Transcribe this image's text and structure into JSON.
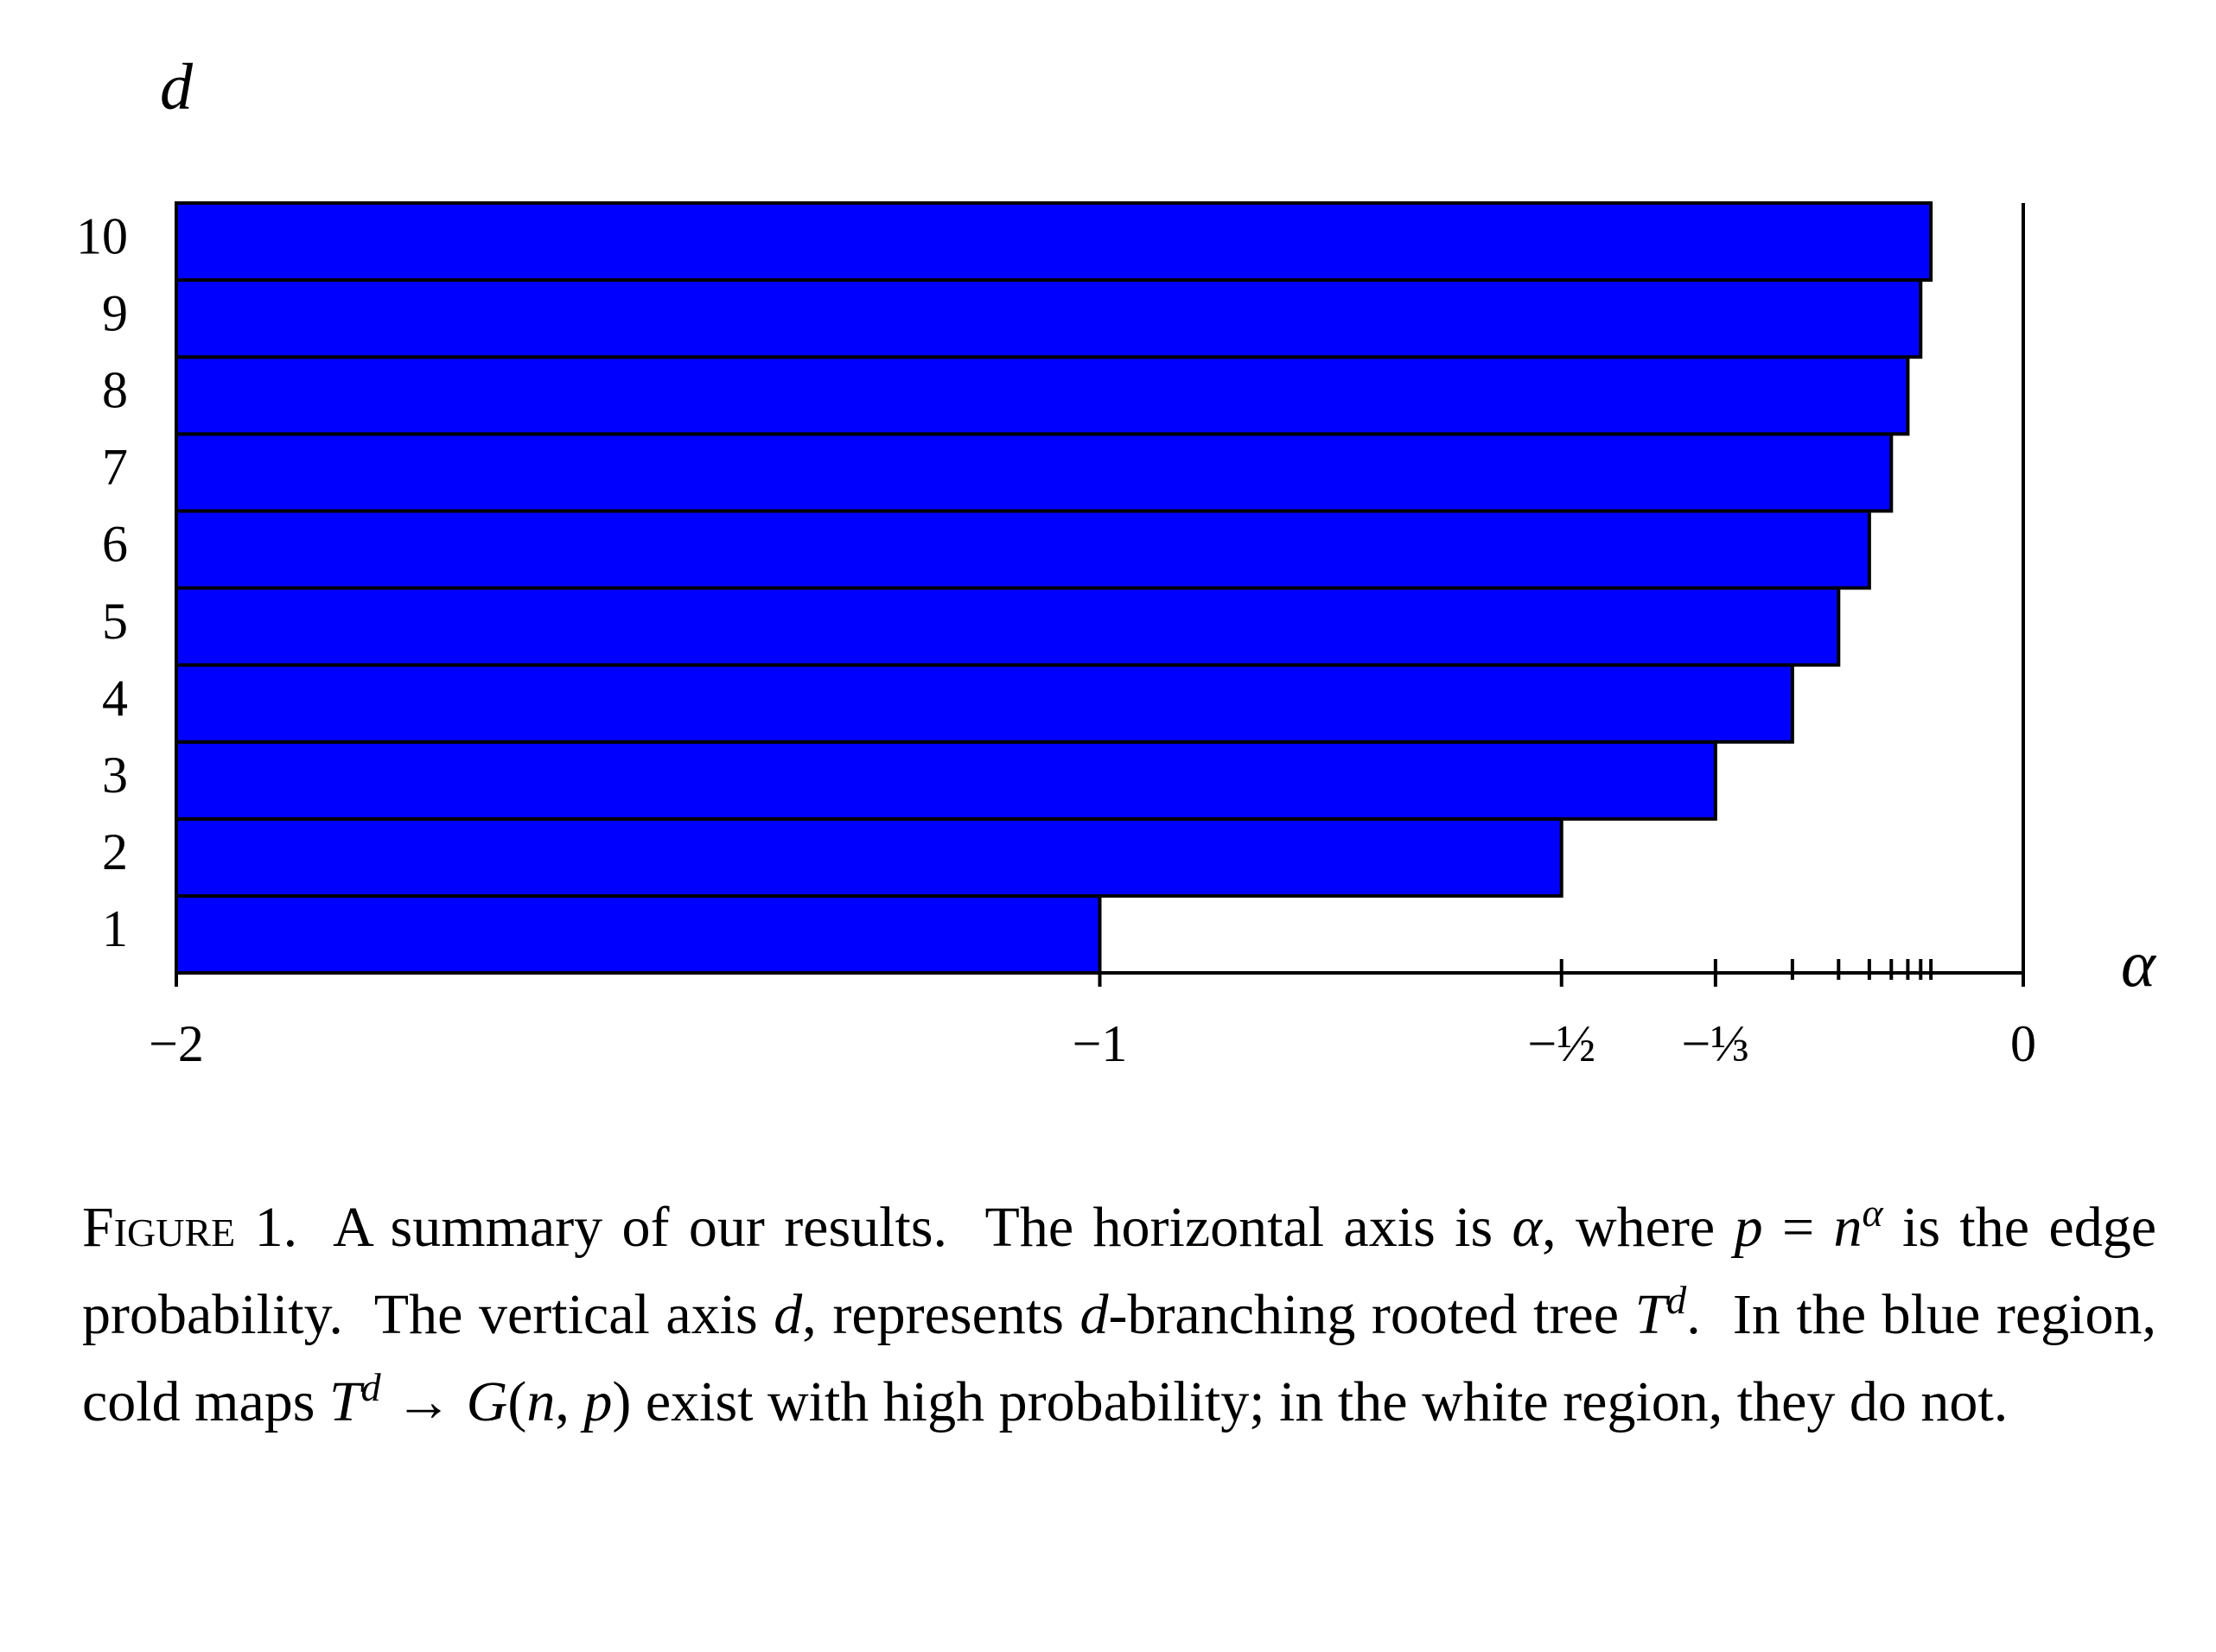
{
  "chart_data": {
    "type": "hbar",
    "categories": [
      "1",
      "2",
      "3",
      "4",
      "5",
      "6",
      "7",
      "8",
      "9",
      "10"
    ],
    "values": [
      -1,
      -0.5,
      -0.3333,
      -0.25,
      -0.2,
      -0.1667,
      -0.1429,
      -0.125,
      -0.1111,
      -0.1
    ],
    "color": "#0000ff",
    "xlim": [
      -2,
      0
    ],
    "xticks": [
      {
        "value": -2,
        "label": "−2"
      },
      {
        "value": -1,
        "label": "−1"
      },
      {
        "value": -0.5,
        "label": "−½"
      },
      {
        "value": -0.3333,
        "label": "−⅓"
      },
      0
    ],
    "xminorticks": [
      -0.25,
      -0.2,
      -0.1667,
      -0.1429,
      -0.125,
      -0.1111,
      -0.1
    ],
    "x_label": "α",
    "y_label": "d",
    "grid": false
  },
  "caption": {
    "runs": [
      {
        "text": "Figure 1.",
        "style": "sc"
      },
      {
        "text": "  A summary of our results.  The horizontal axis is "
      },
      {
        "text": "α",
        "style": "it"
      },
      {
        "text": ", where "
      },
      {
        "text": "p",
        "style": "it"
      },
      {
        "text": " = "
      },
      {
        "text": "n",
        "style": "it"
      },
      {
        "text": "α",
        "style": "sup"
      },
      {
        "text": " is the edge probability.  The vertical axis "
      },
      {
        "text": "d",
        "style": "it"
      },
      {
        "text": ", represents "
      },
      {
        "text": "d",
        "style": "it"
      },
      {
        "text": "-branching rooted tree "
      },
      {
        "text": "T",
        "style": "it"
      },
      {
        "text": "d",
        "style": "sup"
      },
      {
        "text": ".  In the blue region, cold maps "
      },
      {
        "text": "T",
        "style": "it"
      },
      {
        "text": "d",
        "style": "sup"
      },
      {
        "text": " → "
      },
      {
        "text": "G",
        "style": "it"
      },
      {
        "text": "("
      },
      {
        "text": "n",
        "style": "it"
      },
      {
        "text": ", "
      },
      {
        "text": "p",
        "style": "it"
      },
      {
        "text": ")"
      },
      {
        "text": " exist with high probability; in the white region, they do not."
      }
    ]
  }
}
